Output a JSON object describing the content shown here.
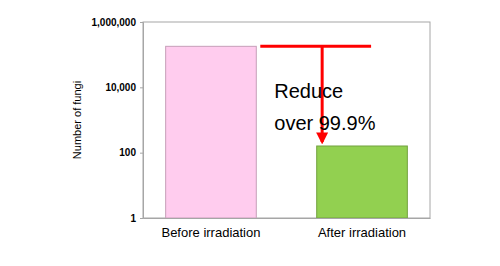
{
  "chart_data": {
    "type": "bar",
    "categories": [
      "Before irradiation",
      "After irradiation"
    ],
    "values": [
      180000,
      160
    ],
    "colors": [
      "#ffccee",
      "#92d050"
    ],
    "y_label": "Number of fungi",
    "annotation": [
      "Reduce",
      "over 99.9%"
    ],
    "log": "y",
    "ylim": [
      1,
      1000000
    ],
    "yticks": [
      1,
      100,
      {
        "value": 10000,
        "label": "10,000"
      },
      {
        "value": 1000000,
        "label": "1,000,000"
      }
    ],
    "grid": false
  }
}
